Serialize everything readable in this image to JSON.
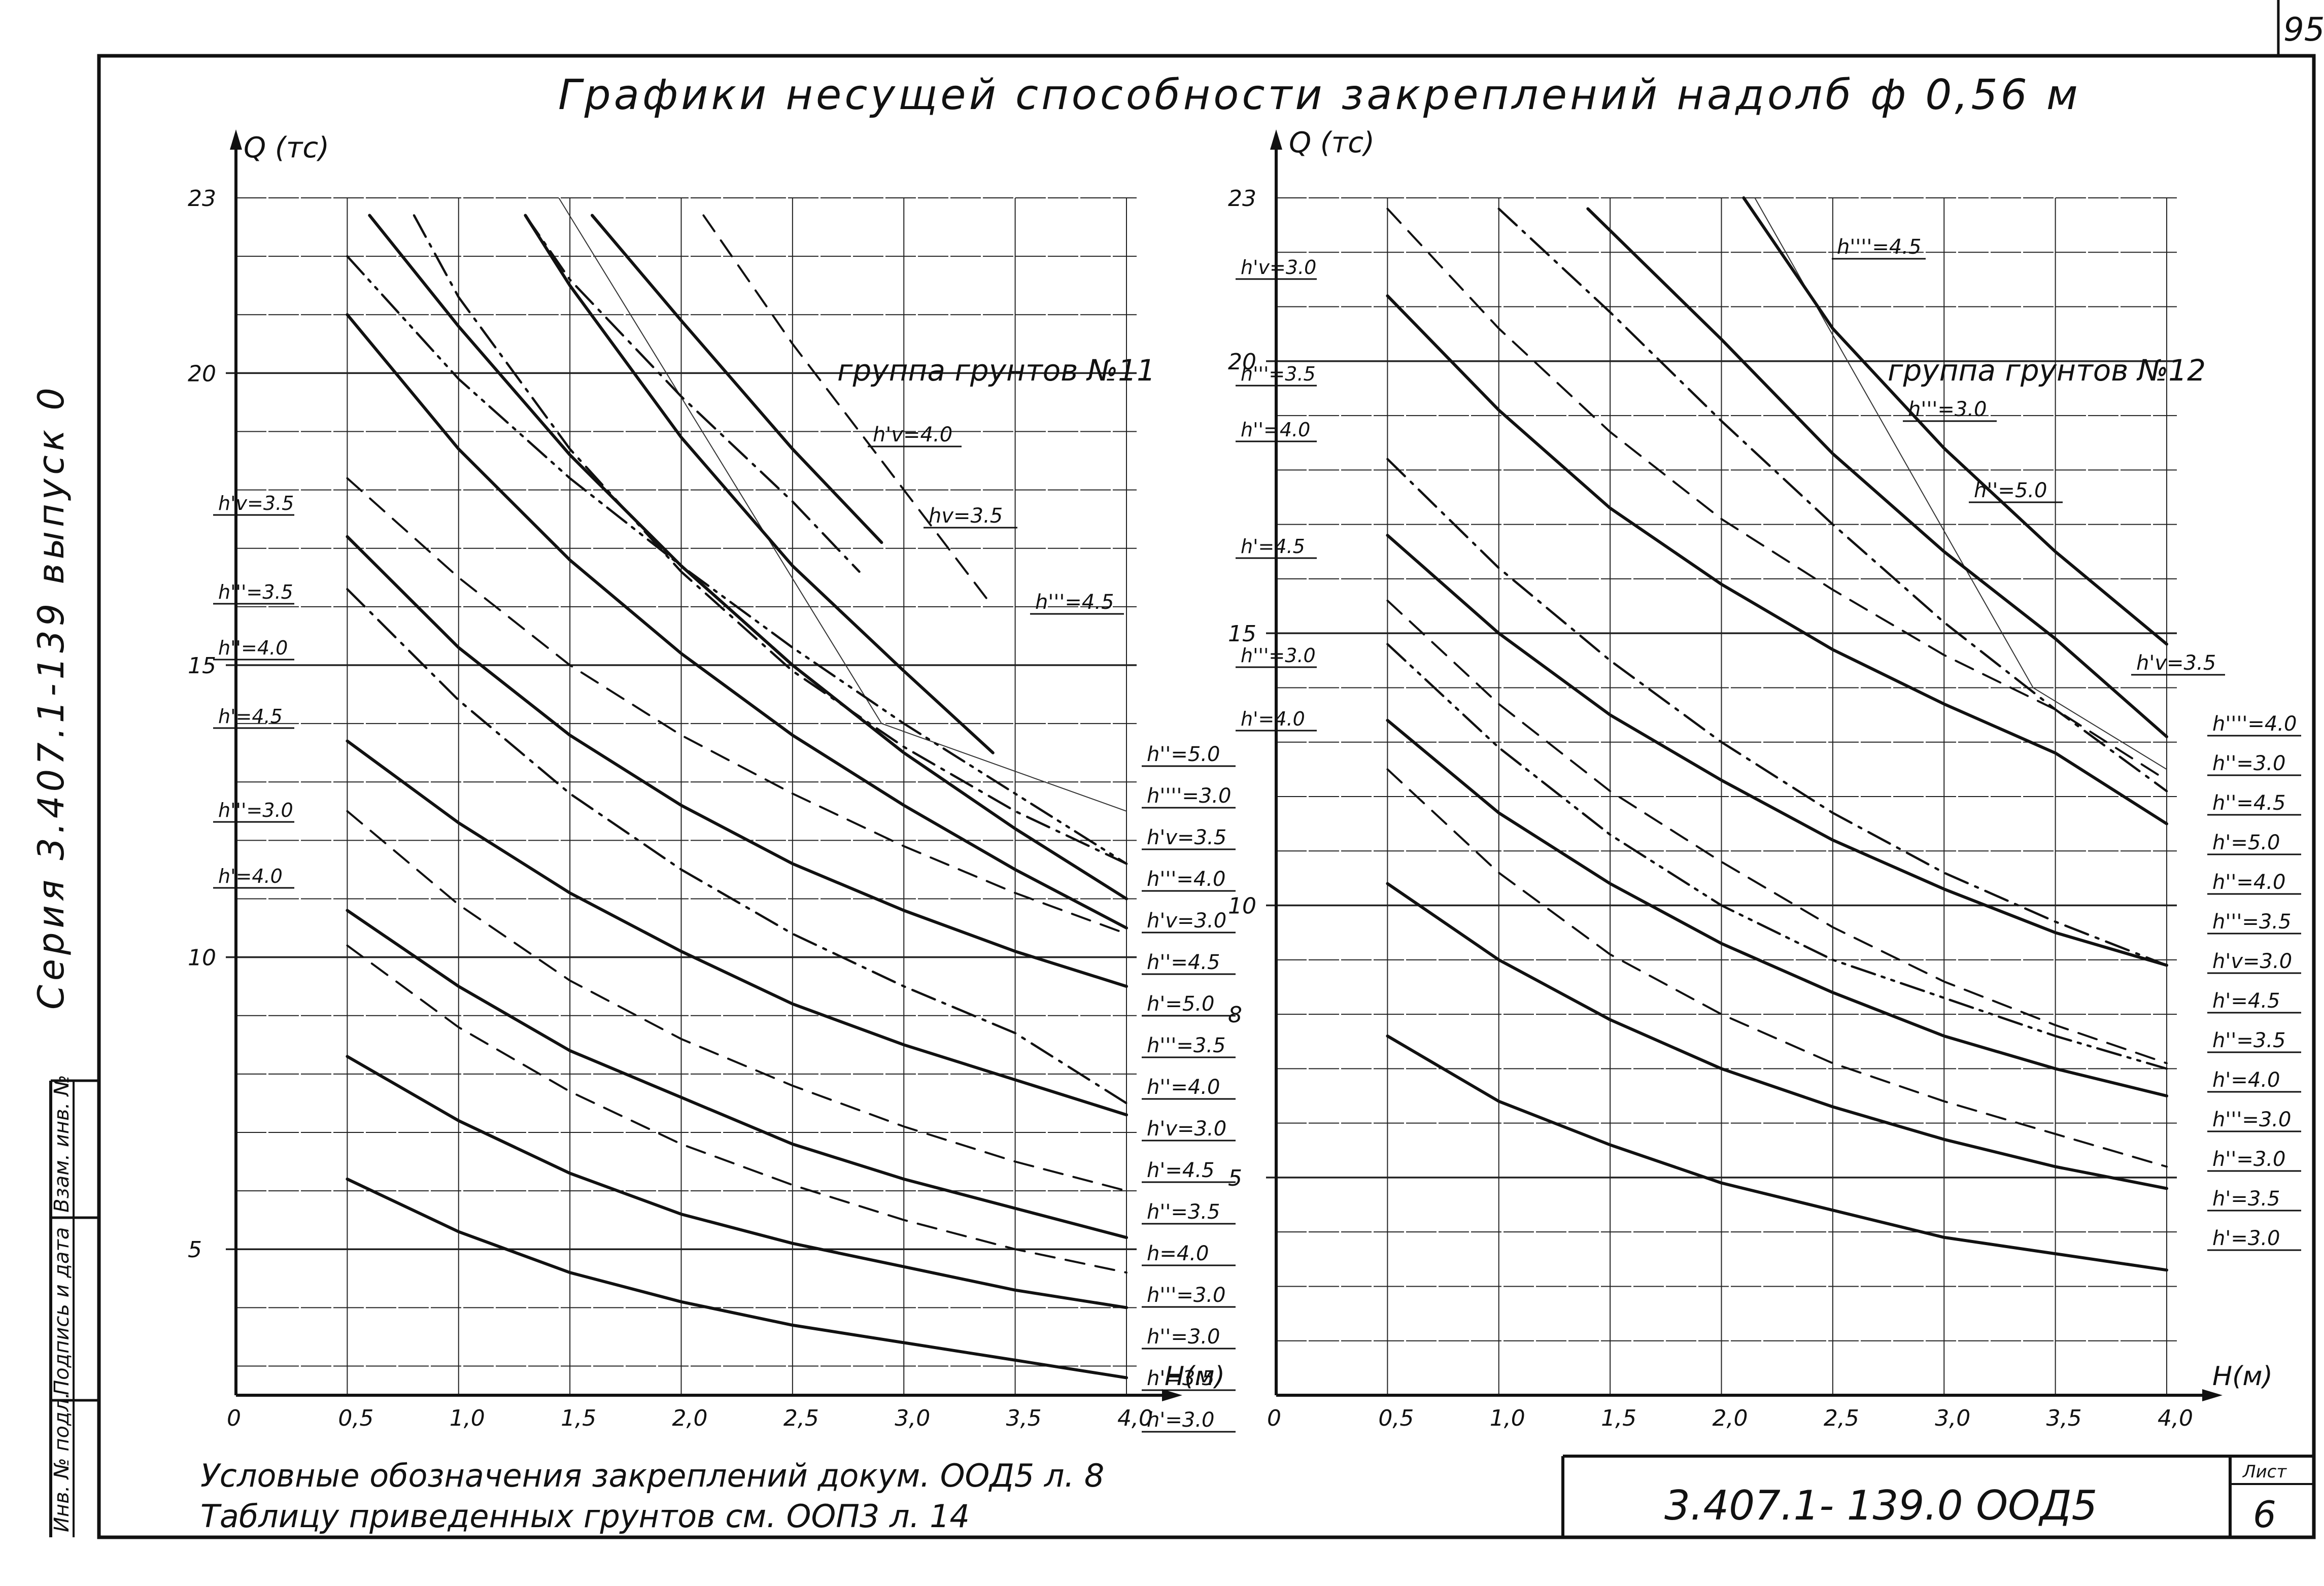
{
  "page_number": "95",
  "title": "Графики несущей способности закреплений надолб ф 0,56 м",
  "side_series": "Серия 3.407.1-139 выпуск 0",
  "stamp_labels": [
    "Взам. инв. №",
    "Подпись и дата",
    "Инв. № подл."
  ],
  "footnote_line1": "Условные обозначения закреплений докум. ООД5 л. 8",
  "footnote_line2": "Таблицу приведенных грунтов см. ООП3 л. 14",
  "doc_code": "3.407.1- 139.0 ООД5",
  "sheet_label": "Лист",
  "sheet_number": "6",
  "colors": {
    "ink": "#111111",
    "grid": "#222222",
    "paper": "#ffffff"
  },
  "chart_data": [
    {
      "type": "line",
      "title": "группа грунтов №11",
      "xlabel": "H(м)",
      "ylabel": "Q (тс)",
      "xlim": [
        0,
        4.0
      ],
      "ylim": [
        2.5,
        23
      ],
      "x_ticks": [
        "0",
        "0,5",
        "1,0",
        "1,5",
        "2,0",
        "2,5",
        "3,0",
        "3,5",
        "4,0"
      ],
      "y_ticks": [
        "5",
        "10",
        "15",
        "20",
        "23"
      ],
      "series": [
        {
          "name": "h'=3.0",
          "style": "solid",
          "x": [
            0.5,
            1.0,
            1.5,
            2.0,
            2.5,
            3.0,
            3.5,
            4.0
          ],
          "values": [
            6.2,
            5.3,
            4.6,
            4.1,
            3.7,
            3.4,
            3.1,
            2.8
          ]
        },
        {
          "name": "h'=3.5",
          "style": "solid",
          "x": [
            0.5,
            1.0,
            1.5,
            2.0,
            2.5,
            3.0,
            3.5,
            4.0
          ],
          "values": [
            8.3,
            7.2,
            6.3,
            5.6,
            5.1,
            4.7,
            4.3,
            4.0
          ]
        },
        {
          "name": "h'''=3.0",
          "style": "dash",
          "x": [
            0.5,
            1.0,
            1.5,
            2.0,
            2.5,
            3.0,
            3.5,
            4.0
          ],
          "values": [
            10.2,
            8.8,
            7.7,
            6.8,
            6.1,
            5.5,
            5.0,
            4.6
          ]
        },
        {
          "name": "h''=4.0",
          "style": "solid",
          "x": [
            0.5,
            1.0,
            1.5,
            2.0,
            2.5,
            3.0,
            3.5,
            4.0
          ],
          "values": [
            10.8,
            9.5,
            8.4,
            7.6,
            6.8,
            6.2,
            5.7,
            5.2
          ]
        },
        {
          "name": "h''=3.5",
          "style": "dash",
          "x": [
            0.5,
            1.0,
            1.5,
            2.0,
            2.5,
            3.0,
            3.5,
            4.0
          ],
          "values": [
            12.5,
            10.9,
            9.6,
            8.6,
            7.8,
            7.1,
            6.5,
            6.0
          ]
        },
        {
          "name": "h'=4.5",
          "style": "solid",
          "x": [
            0.5,
            1.0,
            1.5,
            2.0,
            2.5,
            3.0,
            3.5,
            4.0
          ],
          "values": [
            13.7,
            12.3,
            11.1,
            10.1,
            9.2,
            8.5,
            7.9,
            7.3
          ]
        },
        {
          "name": "h'=5.0",
          "style": "solid",
          "x": [
            0.5,
            1.0,
            1.5,
            2.0,
            2.5,
            3.0,
            3.5,
            4.0
          ],
          "values": [
            17.2,
            15.3,
            13.8,
            12.6,
            11.6,
            10.8,
            10.1,
            9.5
          ]
        },
        {
          "name": "h''''=3.5",
          "style": "dashdot",
          "x": [
            0.5,
            1.0,
            1.5,
            2.0,
            2.5,
            3.0,
            3.5,
            4.0
          ],
          "values": [
            16.3,
            14.4,
            12.8,
            11.5,
            10.4,
            9.5,
            8.7,
            7.5
          ]
        },
        {
          "name": "h'''=3.5",
          "style": "dash",
          "x": [
            0.5,
            1.0,
            1.5,
            2.0,
            2.5,
            3.0,
            3.5,
            4.0
          ],
          "values": [
            18.2,
            16.5,
            15.0,
            13.8,
            12.8,
            11.9,
            11.1,
            10.4
          ]
        },
        {
          "name": "h''=4.5",
          "style": "solid",
          "x": [
            0.5,
            1.0,
            1.5,
            2.0,
            2.5,
            3.0,
            3.5,
            4.0
          ],
          "values": [
            21.0,
            18.7,
            16.8,
            15.2,
            13.8,
            12.6,
            11.5,
            10.5
          ]
        },
        {
          "name": "h''''=4.0",
          "style": "dashdotdot",
          "x": [
            0.5,
            1.0,
            1.5,
            2.0,
            2.5,
            3.0,
            3.5,
            4.0
          ],
          "values": [
            22.0,
            19.9,
            18.2,
            16.7,
            15.3,
            14.0,
            12.8,
            11.6
          ]
        },
        {
          "name": "h'''=4.0",
          "style": "solid",
          "x": [
            0.6,
            1.0,
            1.5,
            2.0,
            2.5,
            3.0,
            3.5,
            4.0
          ],
          "values": [
            22.7,
            20.8,
            18.6,
            16.7,
            15.0,
            13.5,
            12.2,
            11.0
          ]
        },
        {
          "name": "h''=5.0",
          "style": "dashdot",
          "x": [
            0.8,
            1.0,
            1.5,
            2.0,
            2.5,
            3.0,
            3.5,
            4.0
          ],
          "values": [
            22.7,
            21.3,
            18.7,
            16.6,
            14.9,
            13.6,
            12.5,
            11.6
          ]
        },
        {
          "name": "h'v=3.5",
          "style": "solid",
          "x": [
            1.3,
            1.5,
            2.0,
            2.5,
            3.0,
            3.4
          ],
          "values": [
            22.7,
            21.5,
            18.9,
            16.7,
            14.9,
            13.5
          ]
        },
        {
          "name": "h'v=4.0",
          "style": "dashdot",
          "x": [
            1.3,
            1.5,
            2.0,
            2.5,
            2.8
          ],
          "values": [
            22.7,
            21.6,
            19.6,
            17.8,
            16.6
          ]
        },
        {
          "name": "hv=3.5",
          "style": "solid",
          "x": [
            1.6,
            2.0,
            2.5,
            2.9
          ],
          "values": [
            22.7,
            20.9,
            18.7,
            17.1
          ]
        },
        {
          "name": "h'''=4.5",
          "style": "dash",
          "x": [
            2.1,
            2.5,
            3.0,
            3.4
          ],
          "values": [
            22.7,
            20.5,
            18.0,
            16.0
          ]
        }
      ],
      "annotations": [
        "h'v=4.0",
        "hv=3.5",
        "h'''=4.5",
        "h''=5.0",
        "h''''=3.0",
        "h'v=3.5",
        "h'''=4.0",
        "h'v=3.0",
        "h''=4.5",
        "h'=5.0",
        "h'''=3.5",
        "h''=4.0",
        "h'v=3.0",
        "h'=4.5",
        "h''=3.5",
        "h=4.0",
        "h'''=3.0",
        "h''=3.0",
        "h'=3.5",
        "h'=3.0",
        "h'v=3.5",
        "h'''=3.5",
        "h''=4.0",
        "h'=4.5",
        "h'''=3.0",
        "h'=4.0"
      ]
    },
    {
      "type": "line",
      "title": "группа грунтов №12",
      "xlabel": "H(м)",
      "ylabel": "Q (тс)",
      "xlim": [
        0,
        4.0
      ],
      "ylim": [
        1,
        23
      ],
      "x_ticks": [
        "0",
        "0,5",
        "1,0",
        "1,5",
        "2,0",
        "2,5",
        "3,0",
        "3,5",
        "4,0"
      ],
      "y_ticks": [
        "5",
        "8",
        "10",
        "15",
        "20",
        "23"
      ],
      "series": [
        {
          "name": "h'=3.0",
          "style": "solid",
          "x": [
            0.5,
            1.0,
            1.5,
            2.0,
            2.5,
            3.0,
            3.5,
            4.0
          ],
          "values": [
            7.6,
            6.4,
            5.6,
            4.9,
            4.4,
            3.9,
            3.6,
            3.3
          ]
        },
        {
          "name": "h'=3.5",
          "style": "solid",
          "x": [
            0.5,
            1.0,
            1.5,
            2.0,
            2.5,
            3.0,
            3.5,
            4.0
          ],
          "values": [
            10.4,
            9.0,
            7.9,
            7.0,
            6.3,
            5.7,
            5.2,
            4.8
          ]
        },
        {
          "name": "h''=3.0",
          "style": "dash",
          "x": [
            0.5,
            1.0,
            1.5,
            2.0,
            2.5,
            3.0,
            3.5,
            4.0
          ],
          "values": [
            12.5,
            10.6,
            9.1,
            8.0,
            7.1,
            6.4,
            5.8,
            5.2
          ]
        },
        {
          "name": "h'''=3.0",
          "style": "solid",
          "x": [
            0.5,
            1.0,
            1.5,
            2.0,
            2.5,
            3.0,
            3.5,
            4.0
          ],
          "values": [
            13.4,
            11.7,
            10.4,
            9.3,
            8.4,
            7.6,
            7.0,
            6.5
          ]
        },
        {
          "name": "h''=3.5",
          "style": "dashdotdot",
          "x": [
            0.5,
            1.0,
            1.5,
            2.0,
            2.5,
            3.0,
            3.5,
            4.0
          ],
          "values": [
            14.8,
            12.9,
            11.3,
            10.0,
            9.0,
            8.3,
            7.6,
            7.0
          ]
        },
        {
          "name": "h'=4.0",
          "style": "dash",
          "x": [
            0.5,
            1.0,
            1.5,
            2.0,
            2.5,
            3.0,
            3.5,
            4.0
          ],
          "values": [
            15.6,
            13.7,
            12.1,
            10.8,
            9.6,
            8.6,
            7.8,
            7.1
          ]
        },
        {
          "name": "h'=4.5",
          "style": "solid",
          "x": [
            0.5,
            1.0,
            1.5,
            2.0,
            2.5,
            3.0,
            3.5,
            4.0
          ],
          "values": [
            16.8,
            15.0,
            13.5,
            12.3,
            11.2,
            10.3,
            9.5,
            8.9
          ]
        },
        {
          "name": "h''=4.0",
          "style": "dashdot",
          "x": [
            0.5,
            1.0,
            1.5,
            2.0,
            2.5,
            3.0,
            3.5,
            4.0
          ],
          "values": [
            18.2,
            16.2,
            14.5,
            13.0,
            11.7,
            10.6,
            9.7,
            8.9
          ]
        },
        {
          "name": "h'''=3.5",
          "style": "solid",
          "x": [
            0.5,
            1.0,
            1.5,
            2.0,
            2.5,
            3.0,
            3.5,
            4.0
          ],
          "values": [
            21.2,
            19.1,
            17.3,
            15.9,
            14.7,
            13.7,
            12.8,
            11.5
          ]
        },
        {
          "name": "h''=5.0",
          "style": "dash",
          "x": [
            0.5,
            1.0,
            1.5,
            2.0,
            2.5,
            3.0,
            3.5,
            4.0
          ],
          "values": [
            22.8,
            20.6,
            18.7,
            17.1,
            15.8,
            14.6,
            13.6,
            12.3
          ]
        },
        {
          "name": "h'v=3.0",
          "style": "dashdot",
          "x": [
            1.0,
            1.5,
            2.0,
            2.5,
            3.0,
            3.5,
            4.0
          ],
          "values": [
            22.8,
            20.9,
            18.9,
            17.0,
            15.2,
            13.6,
            12.1
          ]
        },
        {
          "name": "h'''=4.0",
          "style": "solid",
          "x": [
            1.4,
            2.0,
            2.5,
            3.0,
            3.5,
            4.0
          ],
          "values": [
            22.8,
            20.4,
            18.3,
            16.5,
            14.9,
            13.1
          ]
        },
        {
          "name": "h'''=4.5",
          "style": "solid",
          "x": [
            2.1,
            2.5,
            3.0,
            3.5,
            4.0
          ],
          "values": [
            23.0,
            20.6,
            18.4,
            16.5,
            14.8
          ]
        }
      ],
      "annotations": [
        "h''''=4.5",
        "h'''=3.0",
        "h''=5.0",
        "h'v=3.5",
        "h''''=4.0",
        "h''=3.0",
        "h''=4.5",
        "h'=5.0",
        "h''=4.0",
        "h'''=3.5",
        "h'v=3.0",
        "h'=4.5",
        "h''=3.5",
        "h'=4.0",
        "h'''=3.0",
        "h''=3.0",
        "h'=3.5",
        "h'=3.0",
        "h'v=3.0",
        "h'''=3.5",
        "h''=4.0",
        "h'=4.5",
        "h'''=3.0",
        "h'=4.0"
      ]
    }
  ]
}
